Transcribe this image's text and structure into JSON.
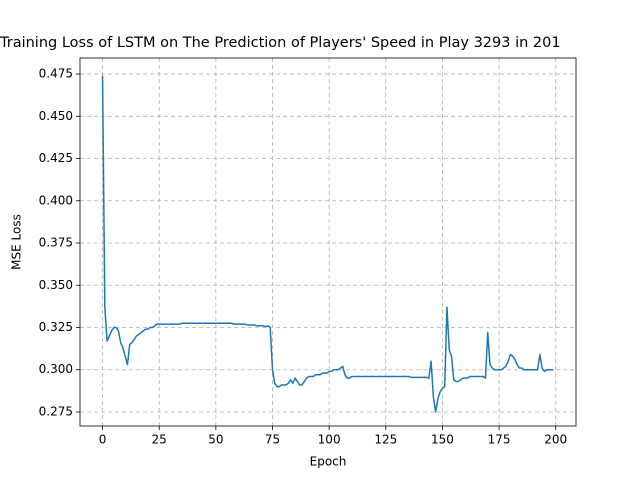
{
  "chart_data": {
    "type": "line",
    "title": "Training Loss of LSTM on The Prediction of Players' Speed in Play 3293 in 201",
    "x_label": "Epoch",
    "y_label": "MSE Loss",
    "color": "#1f77b4",
    "grid": true,
    "xlim": [
      -9.95,
      208.95
    ],
    "ylim": [
      0.2667,
      0.4845
    ],
    "xticks": [
      0,
      25,
      50,
      75,
      100,
      125,
      150,
      175,
      200
    ],
    "yticks": [
      0.275,
      {
        "value": 0.3,
        "label": "0.300"
      },
      0.325,
      {
        "value": 0.35,
        "label": "0.350"
      },
      0.375,
      {
        "value": 0.4,
        "label": "0.400"
      },
      0.425,
      {
        "value": 0.45,
        "label": "0.450"
      },
      0.475
    ],
    "x": [
      0,
      1,
      2,
      3,
      4,
      5,
      6,
      7,
      8,
      9,
      10,
      11,
      12,
      13,
      14,
      15,
      16,
      17,
      18,
      19,
      20,
      21,
      22,
      23,
      24,
      25,
      26,
      27,
      28,
      29,
      30,
      31,
      32,
      33,
      34,
      35,
      36,
      37,
      38,
      39,
      40,
      41,
      42,
      43,
      44,
      45,
      46,
      47,
      48,
      49,
      50,
      51,
      52,
      53,
      54,
      55,
      56,
      57,
      58,
      59,
      60,
      61,
      62,
      63,
      64,
      65,
      66,
      67,
      68,
      69,
      70,
      71,
      72,
      73,
      74,
      75,
      76,
      77,
      78,
      79,
      80,
      81,
      82,
      83,
      84,
      85,
      86,
      87,
      88,
      89,
      90,
      91,
      92,
      93,
      94,
      95,
      96,
      97,
      98,
      99,
      100,
      101,
      102,
      103,
      104,
      105,
      106,
      107,
      108,
      109,
      110,
      111,
      112,
      113,
      114,
      115,
      116,
      117,
      118,
      119,
      120,
      121,
      122,
      123,
      124,
      125,
      126,
      127,
      128,
      129,
      130,
      131,
      132,
      133,
      134,
      135,
      136,
      137,
      138,
      139,
      140,
      141,
      142,
      143,
      144,
      145,
      146,
      147,
      148,
      149,
      150,
      151,
      152,
      153,
      154,
      155,
      156,
      157,
      158,
      159,
      160,
      161,
      162,
      163,
      164,
      165,
      166,
      167,
      168,
      169,
      170,
      171,
      172,
      173,
      174,
      175,
      176,
      177,
      178,
      179,
      180,
      181,
      182,
      183,
      184,
      185,
      186,
      187,
      188,
      189,
      190,
      191,
      192,
      193,
      194,
      195,
      196,
      197,
      198,
      199
    ],
    "values": [
      0.474,
      0.337,
      0.317,
      0.32,
      0.323,
      0.325,
      0.325,
      0.323,
      0.316,
      0.313,
      0.308,
      0.303,
      0.315,
      0.316,
      0.318,
      0.32,
      0.321,
      0.322,
      0.323,
      0.324,
      0.324,
      0.325,
      0.325,
      0.326,
      0.327,
      0.327,
      0.327,
      0.327,
      0.327,
      0.327,
      0.327,
      0.327,
      0.327,
      0.327,
      0.327,
      0.3275,
      0.3275,
      0.3275,
      0.3275,
      0.3275,
      0.3275,
      0.3275,
      0.3275,
      0.3275,
      0.3275,
      0.3275,
      0.3275,
      0.3275,
      0.3275,
      0.3275,
      0.3275,
      0.3275,
      0.3275,
      0.3275,
      0.3275,
      0.3275,
      0.3275,
      0.3275,
      0.327,
      0.327,
      0.327,
      0.327,
      0.327,
      0.327,
      0.3265,
      0.3265,
      0.3265,
      0.3265,
      0.326,
      0.326,
      0.326,
      0.326,
      0.3255,
      0.326,
      0.325,
      0.3,
      0.292,
      0.29,
      0.29,
      0.291,
      0.291,
      0.291,
      0.292,
      0.294,
      0.292,
      0.295,
      0.293,
      0.291,
      0.291,
      0.293,
      0.295,
      0.296,
      0.296,
      0.296,
      0.297,
      0.297,
      0.297,
      0.298,
      0.298,
      0.298,
      0.299,
      0.299,
      0.3,
      0.3,
      0.3,
      0.301,
      0.302,
      0.297,
      0.295,
      0.295,
      0.296,
      0.296,
      0.296,
      0.296,
      0.296,
      0.296,
      0.296,
      0.296,
      0.296,
      0.296,
      0.296,
      0.296,
      0.296,
      0.296,
      0.296,
      0.296,
      0.296,
      0.296,
      0.296,
      0.296,
      0.296,
      0.296,
      0.296,
      0.296,
      0.296,
      0.296,
      0.2955,
      0.2955,
      0.2955,
      0.2955,
      0.2955,
      0.2955,
      0.2955,
      0.2955,
      0.295,
      0.305,
      0.284,
      0.275,
      0.283,
      0.287,
      0.289,
      0.29,
      0.337,
      0.312,
      0.308,
      0.294,
      0.293,
      0.293,
      0.294,
      0.295,
      0.295,
      0.295,
      0.296,
      0.296,
      0.296,
      0.296,
      0.296,
      0.296,
      0.296,
      0.295,
      0.322,
      0.303,
      0.301,
      0.3,
      0.3,
      0.3,
      0.3,
      0.301,
      0.302,
      0.305,
      0.309,
      0.308,
      0.306,
      0.303,
      0.301,
      0.301,
      0.3,
      0.3,
      0.3,
      0.3,
      0.3,
      0.3,
      0.3,
      0.309,
      0.301,
      0.299,
      0.3,
      0.3,
      0.3,
      0.3
    ]
  }
}
